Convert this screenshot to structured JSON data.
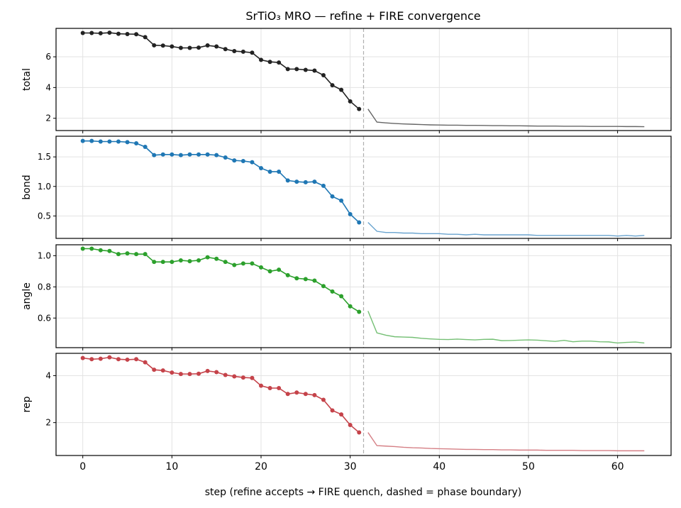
{
  "title": "SrTiO₃ MRO — refine + FIRE convergence",
  "xlabel": "step  (refine accepts → FIRE quench, dashed = phase boundary)",
  "chart_data": {
    "type": "line",
    "title": "SrTiO₃ MRO — refine + FIRE convergence",
    "xlabel": "step  (refine accepts → FIRE quench, dashed = phase boundary)",
    "xlim": [
      -3,
      66
    ],
    "xticks": [
      0,
      10,
      20,
      30,
      40,
      50,
      60
    ],
    "phase_boundary": 31.5,
    "panels": [
      {
        "ylabel": "total",
        "color": "#222222",
        "fire_color": "#666666",
        "ylim": [
          1.2,
          7.85
        ],
        "yticks": [
          2,
          4,
          6
        ],
        "refine": [
          7.55,
          7.55,
          7.53,
          7.57,
          7.5,
          7.48,
          7.47,
          7.28,
          6.75,
          6.73,
          6.67,
          6.58,
          6.58,
          6.6,
          6.74,
          6.67,
          6.5,
          6.37,
          6.33,
          6.27,
          5.8,
          5.67,
          5.63,
          5.2,
          5.2,
          5.15,
          5.1,
          4.8,
          4.15,
          3.85,
          3.1,
          2.6
        ],
        "fire": [
          2.6,
          1.75,
          1.7,
          1.66,
          1.63,
          1.61,
          1.59,
          1.57,
          1.56,
          1.55,
          1.55,
          1.54,
          1.54,
          1.53,
          1.52,
          1.52,
          1.51,
          1.51,
          1.5,
          1.49,
          1.49,
          1.49,
          1.48,
          1.48,
          1.48,
          1.47,
          1.47,
          1.47,
          1.47,
          1.46,
          1.46,
          1.45
        ]
      },
      {
        "ylabel": "bond",
        "color": "#1f77b4",
        "fire_color": "#6aa4cf",
        "ylim": [
          0.12,
          1.85
        ],
        "yticks": [
          0.5,
          1.0,
          1.5
        ],
        "refine": [
          1.77,
          1.77,
          1.76,
          1.76,
          1.76,
          1.75,
          1.73,
          1.67,
          1.53,
          1.54,
          1.54,
          1.53,
          1.54,
          1.54,
          1.54,
          1.53,
          1.49,
          1.44,
          1.43,
          1.41,
          1.31,
          1.25,
          1.25,
          1.1,
          1.08,
          1.07,
          1.08,
          1.01,
          0.83,
          0.76,
          0.53,
          0.39
        ],
        "fire": [
          0.39,
          0.24,
          0.22,
          0.22,
          0.21,
          0.21,
          0.2,
          0.2,
          0.2,
          0.19,
          0.19,
          0.18,
          0.19,
          0.18,
          0.18,
          0.18,
          0.18,
          0.18,
          0.18,
          0.17,
          0.17,
          0.17,
          0.17,
          0.17,
          0.17,
          0.17,
          0.17,
          0.17,
          0.16,
          0.17,
          0.16,
          0.17
        ]
      },
      {
        "ylabel": "angle",
        "color": "#2ca02c",
        "fire_color": "#74bf74",
        "ylim": [
          0.41,
          1.07
        ],
        "yticks": [
          0.6,
          0.8,
          1.0
        ],
        "refine": [
          1.045,
          1.045,
          1.035,
          1.03,
          1.01,
          1.015,
          1.01,
          1.01,
          0.96,
          0.96,
          0.96,
          0.97,
          0.965,
          0.97,
          0.99,
          0.98,
          0.96,
          0.94,
          0.95,
          0.95,
          0.925,
          0.9,
          0.91,
          0.875,
          0.855,
          0.85,
          0.84,
          0.805,
          0.77,
          0.74,
          0.675,
          0.64
        ],
        "fire": [
          0.645,
          0.505,
          0.49,
          0.48,
          0.478,
          0.476,
          0.47,
          0.466,
          0.463,
          0.462,
          0.465,
          0.462,
          0.46,
          0.463,
          0.464,
          0.455,
          0.456,
          0.458,
          0.46,
          0.458,
          0.454,
          0.45,
          0.457,
          0.448,
          0.452,
          0.452,
          0.448,
          0.447,
          0.44,
          0.444,
          0.446,
          0.44
        ]
      },
      {
        "ylabel": "rep",
        "color": "#c5434a",
        "fire_color": "#d57f85",
        "ylim": [
          0.6,
          4.95
        ],
        "yticks": [
          2,
          4
        ],
        "refine": [
          4.75,
          4.7,
          4.72,
          4.78,
          4.7,
          4.68,
          4.7,
          4.57,
          4.25,
          4.22,
          4.13,
          4.07,
          4.07,
          4.08,
          4.2,
          4.15,
          4.03,
          3.97,
          3.92,
          3.9,
          3.57,
          3.47,
          3.47,
          3.22,
          3.28,
          3.22,
          3.17,
          2.97,
          2.52,
          2.35,
          1.9,
          1.58
        ],
        "fire": [
          1.58,
          1.02,
          1.0,
          0.98,
          0.95,
          0.93,
          0.92,
          0.9,
          0.89,
          0.88,
          0.87,
          0.86,
          0.86,
          0.85,
          0.85,
          0.84,
          0.84,
          0.83,
          0.83,
          0.83,
          0.82,
          0.82,
          0.82,
          0.82,
          0.81,
          0.81,
          0.81,
          0.81,
          0.8,
          0.8,
          0.8,
          0.8
        ]
      }
    ]
  }
}
